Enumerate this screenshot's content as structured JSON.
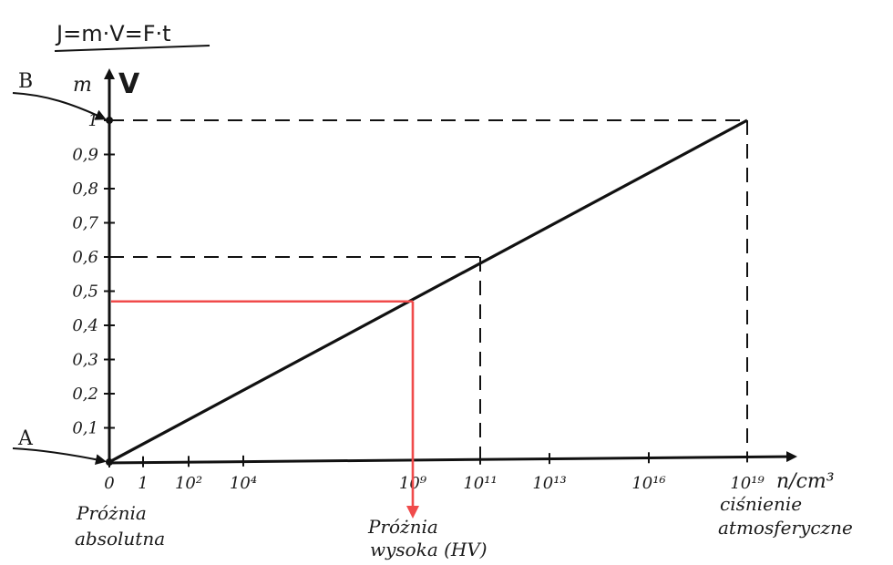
{
  "chart_data": {
    "type": "line",
    "formula": "J=m·V=F·t",
    "ylabel_m": "m",
    "ylabel_V": "V",
    "xlabel": "n/cm³",
    "y_ticks": [
      "0,1",
      "0,2",
      "0,3",
      "0,4",
      "0,5",
      "0,6",
      "0,7",
      "0,8",
      "0,9",
      "1"
    ],
    "y_tick_values": [
      0.1,
      0.2,
      0.3,
      0.4,
      0.5,
      0.6,
      0.7,
      0.8,
      0.9,
      1
    ],
    "x_ticks": [
      {
        "label": "0",
        "x": 0
      },
      {
        "label": "1",
        "x": 1
      },
      {
        "label": "10²",
        "x": 100
      },
      {
        "label": "10⁴",
        "x": 10000
      },
      {
        "label": "10⁹",
        "x": 1000000000
      },
      {
        "label": "10¹¹",
        "x": 100000000000
      },
      {
        "label": "10¹³",
        "x": 10000000000000
      },
      {
        "label": "10¹⁶",
        "x": 10000000000000000
      },
      {
        "label": "10¹⁹",
        "x": 10000000000000000000
      }
    ],
    "ylim": [
      0,
      1
    ],
    "series": [
      {
        "points": [
          {
            "x": 0,
            "y": 0
          },
          {
            "x": 10000000000000000000,
            "y": 1
          }
        ]
      }
    ],
    "guides": [
      {
        "x": 100000000000,
        "y": 0.6
      },
      {
        "x": 10000000000000000000,
        "y": 1
      }
    ],
    "highlight": {
      "x": 1000000000,
      "y": 0.47
    },
    "annotations": {
      "A": "A",
      "B": "B",
      "origin": [
        "Próżnia",
        "absolutna"
      ],
      "high_vacuum": [
        "Próżnia",
        "wysoka (HV)"
      ],
      "atmospheric": [
        "ciśnienie",
        "atmosferyczne"
      ]
    },
    "colors": {
      "line": "#111111",
      "highlight": "#f04b4b"
    },
    "grid": false
  }
}
